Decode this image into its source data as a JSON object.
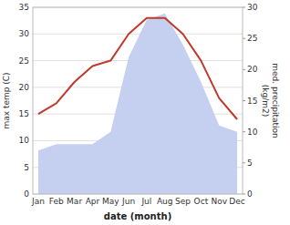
{
  "chart_data": {
    "type": "line",
    "x_label": "date (month)",
    "y_label": "max temp (C)",
    "y2_label": "med. precipitation\n(kg/m2)",
    "categories": [
      "Jan",
      "Feb",
      "Mar",
      "Apr",
      "May",
      "Jun",
      "Jul",
      "Aug",
      "Sep",
      "Oct",
      "Nov",
      "Dec"
    ],
    "series": [
      {
        "type": "area",
        "axis": "y2",
        "color": "#c5cff0",
        "values": [
          7,
          8,
          8,
          8,
          10,
          22,
          28,
          29,
          24,
          18,
          11,
          10
        ]
      },
      {
        "type": "line",
        "color": "#c0392b",
        "values": [
          15,
          17,
          21,
          24,
          25,
          30,
          33,
          33,
          30,
          25,
          18,
          14
        ]
      }
    ],
    "ylim": [
      0,
      35
    ],
    "yticks": [
      0,
      5,
      10,
      15,
      20,
      25,
      30,
      35
    ],
    "y2lim": [
      0,
      30
    ],
    "y2ticks": [
      0,
      5,
      10,
      15,
      20,
      25,
      30
    ],
    "grid": true
  }
}
